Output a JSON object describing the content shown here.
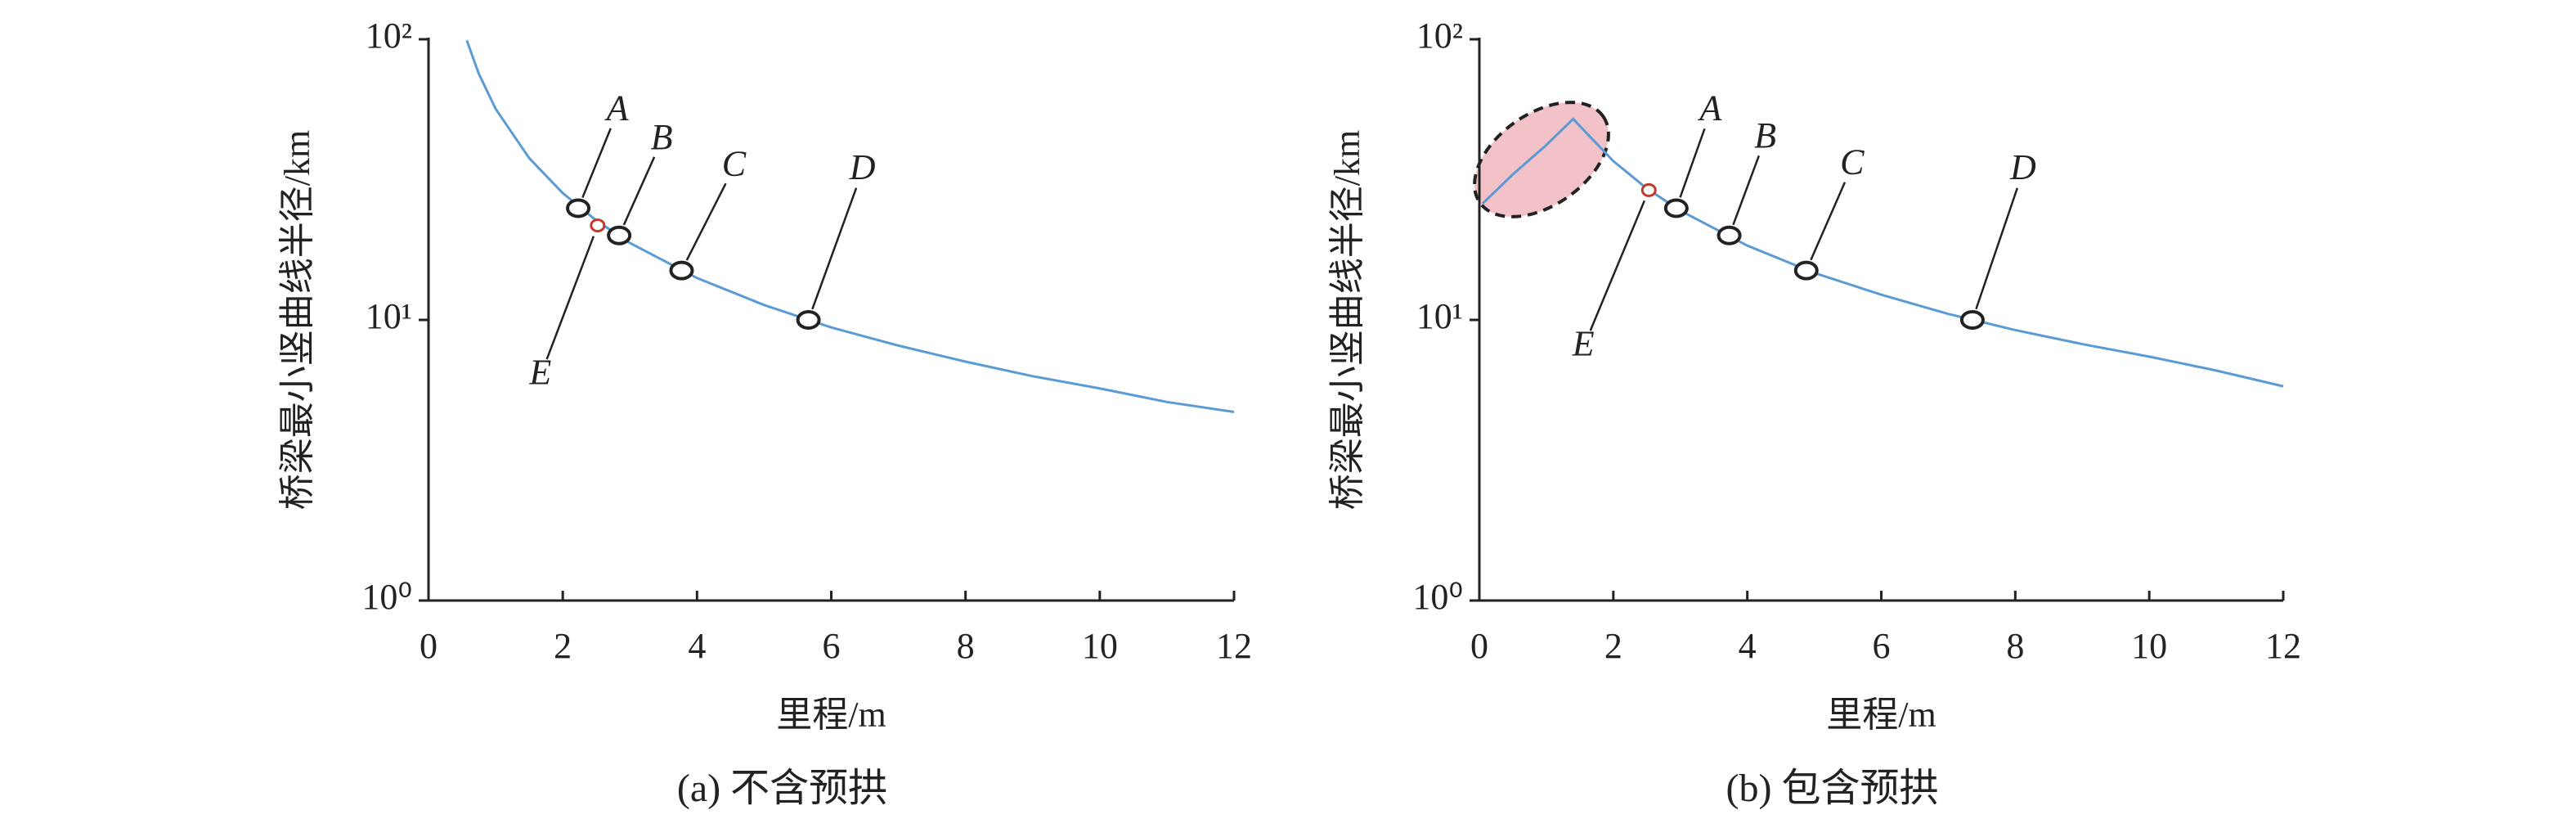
{
  "chart_data": [
    {
      "type": "line",
      "caption": "(a) 不含预拱",
      "xlabel": "里程/m",
      "ylabel": "桥梁最小竖曲线半径/km",
      "ylog": true,
      "color": "#5b9bd5",
      "x": [
        0.57,
        0.75,
        1,
        1.5,
        2,
        2.5,
        3,
        4,
        5,
        6,
        7,
        8,
        9,
        10,
        11,
        12
      ],
      "values": [
        99.1,
        75.3,
        56.5,
        37.7,
        28.3,
        22.6,
        18.8,
        14.1,
        11.3,
        9.4,
        8.1,
        7.1,
        6.3,
        5.7,
        5.1,
        4.7
      ],
      "xlim": [
        0,
        12
      ],
      "xticks": [
        0,
        2,
        4,
        6,
        8,
        10,
        12
      ],
      "ylim": [
        1,
        100
      ],
      "yticks": [
        {
          "value": 1,
          "label": "10⁰"
        },
        {
          "value": 10,
          "label": "10¹"
        },
        {
          "value": 100,
          "label": "10²"
        }
      ],
      "annotations": [
        {
          "label": "A",
          "x": 2.23,
          "y": 25
        },
        {
          "label": "B",
          "x": 2.84,
          "y": 20
        },
        {
          "label": "C",
          "x": 3.77,
          "y": 15
        },
        {
          "label": "D",
          "x": 5.66,
          "y": 10
        },
        {
          "label": "E",
          "x": 2.52,
          "y": 21.7
        }
      ]
    },
    {
      "type": "line",
      "caption": "(b) 包含预拱",
      "xlabel": "里程/m",
      "ylabel": "桥梁最小竖曲线半径/km",
      "ylog": true,
      "color": "#5b9bd5",
      "x": [
        0.05,
        0.5,
        1,
        1.4,
        2,
        2.5,
        3,
        4,
        5,
        6,
        7,
        8,
        9,
        10,
        11,
        12
      ],
      "values": [
        26,
        33,
        42,
        52,
        36.8,
        29.4,
        24.5,
        18.4,
        14.7,
        12.3,
        10.5,
        9.2,
        8.2,
        7.4,
        6.6,
        5.8
      ],
      "xlim": [
        0,
        12
      ],
      "xticks": [
        0,
        2,
        4,
        6,
        8,
        10,
        12
      ],
      "ylim": [
        1,
        100
      ],
      "yticks": [
        {
          "value": 1,
          "label": "10⁰"
        },
        {
          "value": 10,
          "label": "10¹"
        },
        {
          "value": 100,
          "label": "10²"
        }
      ],
      "annotations": [
        {
          "label": "A",
          "x": 2.94,
          "y": 25
        },
        {
          "label": "B",
          "x": 3.73,
          "y": 20
        },
        {
          "label": "C",
          "x": 4.88,
          "y": 15
        },
        {
          "label": "D",
          "x": 7.36,
          "y": 10
        },
        {
          "label": "E",
          "x": 2.53,
          "y": 29
        }
      ]
    }
  ]
}
